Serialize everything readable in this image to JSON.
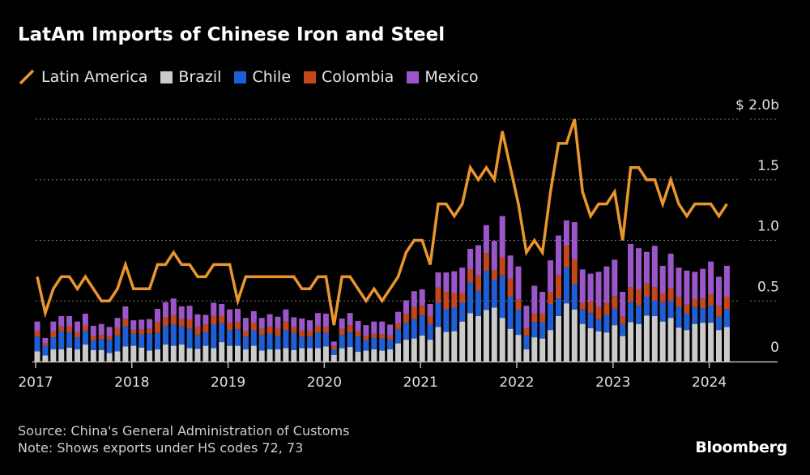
{
  "chart_data": {
    "type": "bar+line",
    "title": "LatAm Imports of Chinese Iron and Steel",
    "y_unit_prefix": "$",
    "ylim": [
      0,
      2.0
    ],
    "y_ticks": [
      {
        "value": 0,
        "label": "0"
      },
      {
        "value": 0.5,
        "label": "0.5"
      },
      {
        "value": 1.0,
        "label": "1.0"
      },
      {
        "value": 1.5,
        "label": "1.5"
      },
      {
        "value": 2.0,
        "label": "$ 2.0b"
      }
    ],
    "x_ticks": [
      "2017",
      "2018",
      "2019",
      "2020",
      "2021",
      "2022",
      "2023",
      "2024"
    ],
    "grid": "horizontal dotted",
    "legend_placement": "top-left",
    "start_month": "2017-01",
    "bar_series": [
      {
        "name": "Brazil",
        "color": "#cbcbcb",
        "values": [
          0.085,
          0.05,
          0.1,
          0.1,
          0.115,
          0.1,
          0.14,
          0.095,
          0.095,
          0.07,
          0.085,
          0.125,
          0.13,
          0.115,
          0.09,
          0.1,
          0.14,
          0.13,
          0.14,
          0.11,
          0.105,
          0.13,
          0.11,
          0.16,
          0.13,
          0.13,
          0.1,
          0.13,
          0.09,
          0.1,
          0.1,
          0.11,
          0.095,
          0.11,
          0.11,
          0.11,
          0.125,
          0.055,
          0.11,
          0.12,
          0.08,
          0.09,
          0.1,
          0.09,
          0.1,
          0.15,
          0.18,
          0.19,
          0.215,
          0.18,
          0.285,
          0.245,
          0.25,
          0.33,
          0.4,
          0.375,
          0.425,
          0.445,
          0.36,
          0.27,
          0.22,
          0.1,
          0.2,
          0.19,
          0.26,
          0.375,
          0.48,
          0.43,
          0.31,
          0.275,
          0.25,
          0.24,
          0.3,
          0.21,
          0.325,
          0.31,
          0.38,
          0.375,
          0.33,
          0.36,
          0.28,
          0.26,
          0.31,
          0.32,
          0.32,
          0.26,
          0.285
        ]
      },
      {
        "name": "Chile",
        "color": "#1f5fd6",
        "values": [
          0.12,
          0.08,
          0.1,
          0.15,
          0.125,
          0.1,
          0.11,
          0.08,
          0.09,
          0.11,
          0.13,
          0.165,
          0.1,
          0.11,
          0.14,
          0.135,
          0.155,
          0.175,
          0.15,
          0.16,
          0.115,
          0.11,
          0.195,
          0.155,
          0.13,
          0.135,
          0.105,
          0.13,
          0.13,
          0.13,
          0.11,
          0.15,
          0.14,
          0.095,
          0.095,
          0.13,
          0.11,
          0.045,
          0.11,
          0.12,
          0.125,
          0.085,
          0.095,
          0.1,
          0.08,
          0.115,
          0.14,
          0.16,
          0.165,
          0.13,
          0.2,
          0.185,
          0.195,
          0.155,
          0.25,
          0.21,
          0.325,
          0.23,
          0.35,
          0.265,
          0.205,
          0.115,
          0.125,
          0.135,
          0.215,
          0.145,
          0.295,
          0.21,
          0.12,
          0.125,
          0.1,
          0.145,
          0.135,
          0.1,
          0.165,
          0.15,
          0.155,
          0.13,
          0.16,
          0.14,
          0.17,
          0.135,
          0.14,
          0.12,
          0.14,
          0.11,
          0.145
        ]
      },
      {
        "name": "Colombia",
        "color": "#c4461c",
        "values": [
          0.045,
          0.02,
          0.05,
          0.04,
          0.05,
          0.04,
          0.045,
          0.035,
          0.035,
          0.03,
          0.06,
          0.06,
          0.03,
          0.04,
          0.04,
          0.09,
          0.07,
          0.08,
          0.06,
          0.075,
          0.065,
          0.065,
          0.07,
          0.06,
          0.06,
          0.06,
          0.045,
          0.06,
          0.05,
          0.06,
          0.065,
          0.07,
          0.05,
          0.05,
          0.045,
          0.055,
          0.05,
          0.025,
          0.05,
          0.06,
          0.04,
          0.035,
          0.035,
          0.035,
          0.035,
          0.05,
          0.075,
          0.1,
          0.08,
          0.065,
          0.125,
          0.145,
          0.12,
          0.08,
          0.11,
          0.125,
          0.145,
          0.08,
          0.15,
          0.15,
          0.085,
          0.06,
          0.07,
          0.07,
          0.1,
          0.19,
          0.18,
          0.2,
          0.055,
          0.095,
          0.1,
          0.1,
          0.105,
          0.06,
          0.125,
          0.135,
          0.11,
          0.11,
          0.075,
          0.105,
          0.085,
          0.075,
          0.065,
          0.08,
          0.095,
          0.09,
          0.105
        ]
      },
      {
        "name": "Mexico",
        "color": "#9b57c9",
        "values": [
          0.08,
          0.045,
          0.08,
          0.085,
          0.085,
          0.09,
          0.1,
          0.085,
          0.09,
          0.075,
          0.085,
          0.105,
          0.08,
          0.08,
          0.08,
          0.11,
          0.125,
          0.135,
          0.105,
          0.115,
          0.105,
          0.08,
          0.11,
          0.1,
          0.11,
          0.11,
          0.11,
          0.095,
          0.09,
          0.1,
          0.095,
          0.1,
          0.08,
          0.1,
          0.09,
          0.105,
          0.11,
          0.04,
          0.085,
          0.1,
          0.09,
          0.09,
          0.1,
          0.105,
          0.09,
          0.095,
          0.11,
          0.13,
          0.135,
          0.1,
          0.125,
          0.16,
          0.18,
          0.21,
          0.17,
          0.25,
          0.23,
          0.24,
          0.34,
          0.19,
          0.275,
          0.185,
          0.23,
          0.18,
          0.26,
          0.33,
          0.21,
          0.31,
          0.275,
          0.23,
          0.29,
          0.3,
          0.3,
          0.205,
          0.355,
          0.34,
          0.26,
          0.34,
          0.225,
          0.285,
          0.24,
          0.28,
          0.225,
          0.245,
          0.27,
          0.24,
          0.255
        ]
      }
    ],
    "line_series": {
      "name": "Latin America",
      "color": "#ea962d",
      "values": [
        0.7,
        0.4,
        0.6,
        0.7,
        0.7,
        0.6,
        0.7,
        0.6,
        0.5,
        0.5,
        0.6,
        0.8,
        0.6,
        0.6,
        0.6,
        0.8,
        0.8,
        0.9,
        0.8,
        0.8,
        0.7,
        0.7,
        0.8,
        0.8,
        0.8,
        0.5,
        0.7,
        0.7,
        0.7,
        0.7,
        0.7,
        0.7,
        0.7,
        0.6,
        0.6,
        0.7,
        0.7,
        0.3,
        0.7,
        0.7,
        0.6,
        0.5,
        0.6,
        0.5,
        0.6,
        0.7,
        0.9,
        1.0,
        1.0,
        0.8,
        1.3,
        1.3,
        1.2,
        1.3,
        1.6,
        1.5,
        1.6,
        1.5,
        1.9,
        1.6,
        1.3,
        0.9,
        1.0,
        0.9,
        1.4,
        1.8,
        1.8,
        2.0,
        1.4,
        1.2,
        1.3,
        1.3,
        1.4,
        1.0,
        1.6,
        1.6,
        1.5,
        1.5,
        1.3,
        1.5,
        1.3,
        1.2,
        1.3,
        1.3,
        1.3,
        1.2,
        1.3
      ]
    }
  },
  "legend": [
    {
      "label": "Latin America",
      "kind": "line",
      "color": "#ea962d"
    },
    {
      "label": "Brazil",
      "kind": "box",
      "color": "#cbcbcb"
    },
    {
      "label": "Chile",
      "kind": "box",
      "color": "#1f5fd6"
    },
    {
      "label": "Colombia",
      "kind": "box",
      "color": "#c4461c"
    },
    {
      "label": "Mexico",
      "kind": "box",
      "color": "#9b57c9"
    }
  ],
  "footer": {
    "source": "Source: China's General Administration of Customs",
    "note": "Note: Shows exports under HS codes 72, 73",
    "logo": "Bloomberg"
  }
}
